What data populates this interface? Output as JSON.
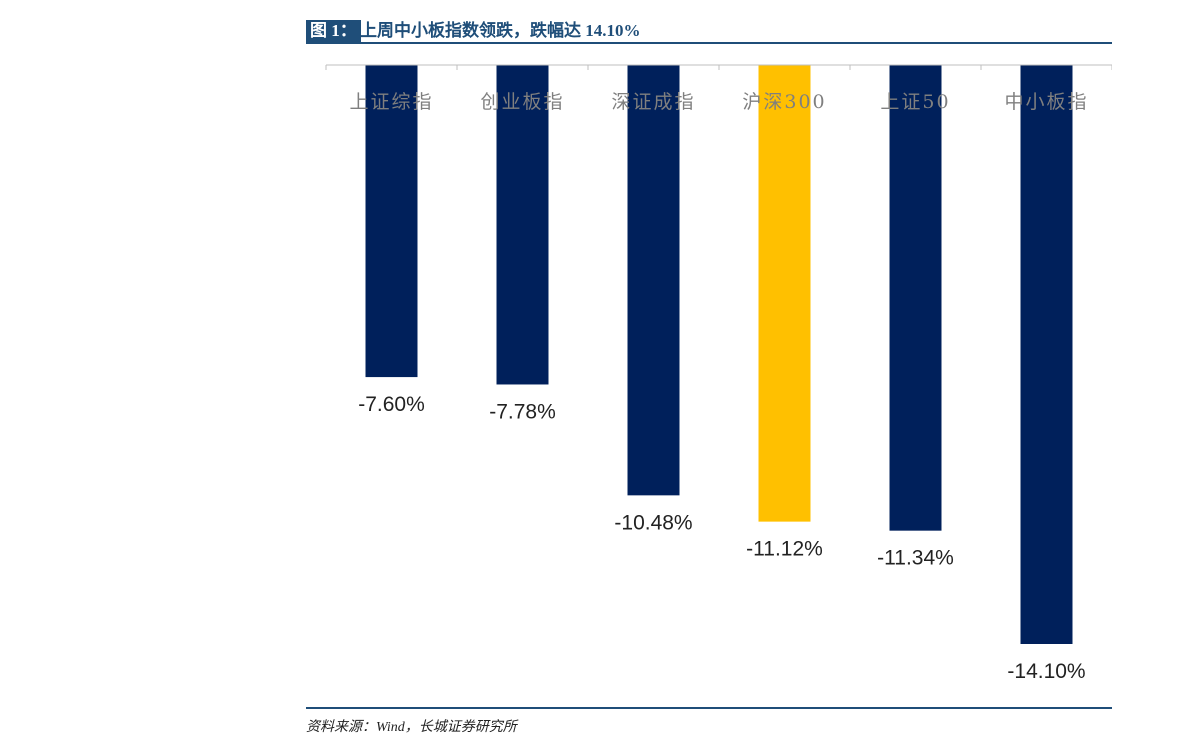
{
  "figure": {
    "label": "图 1：",
    "title": "上周中小板指数领跌，跌幅达 14.10%"
  },
  "source": "资料来源：Wind，长城证券研究所",
  "colors": {
    "primary": "#1f4e79",
    "bar_default": "#00205b",
    "bar_highlight": "#ffc000",
    "axis": "#bfbfbf",
    "category_text": "#7f7f7f",
    "value_text": "#222222"
  },
  "chart_data": {
    "type": "bar",
    "title": "上周中小板指数领跌，跌幅达 14.10%",
    "xlabel": "",
    "ylabel": "",
    "categories": [
      "上证综指",
      "创业板指",
      "深证成指",
      "沪深300",
      "上证50",
      "中小板指"
    ],
    "values": [
      -7.6,
      -7.78,
      -10.48,
      -11.12,
      -11.34,
      -14.1
    ],
    "value_labels": [
      "-7.60%",
      "-7.78%",
      "-10.48%",
      "-11.12%",
      "-11.34%",
      "-14.10%"
    ],
    "highlight_index": 3,
    "ylim": [
      -14.1,
      0
    ],
    "grid": false,
    "legend": "none"
  }
}
